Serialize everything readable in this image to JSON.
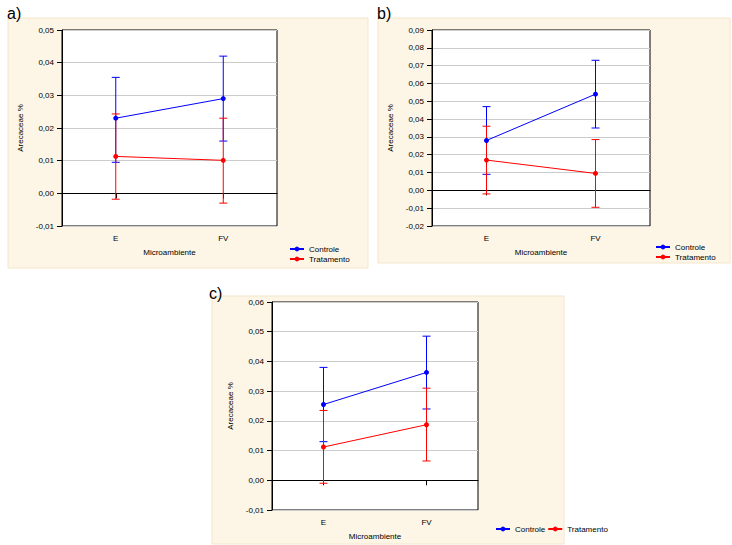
{
  "chart_data": [
    {
      "type": "line",
      "title": "a)",
      "x_label": "Microambiente",
      "y_label": "Arecaceae %",
      "categories": [
        "E",
        "FV"
      ],
      "series": [
        {
          "name": "Controle",
          "color": "#0000ff",
          "marker": "circle",
          "values": [
            0.023,
            0.029
          ],
          "error_low": [
            0.0095,
            0.016
          ],
          "error_high": [
            0.0355,
            0.042
          ]
        },
        {
          "name": "Tratamento",
          "color": "#ff0000",
          "marker": "circle",
          "values": [
            0.0113,
            0.0101
          ],
          "error_low": [
            -0.0018,
            -0.003
          ],
          "error_high": [
            0.0243,
            0.023
          ]
        }
      ],
      "ylim": [
        -0.01,
        0.05
      ],
      "yticks": [
        {
          "value": -0.01,
          "label": "-0,01"
        },
        {
          "value": 0,
          "label": "0,00"
        },
        {
          "value": 0.01,
          "label": "0,01"
        },
        {
          "value": 0.02,
          "label": "0,02"
        },
        {
          "value": 0.03,
          "label": "0,03"
        },
        {
          "value": 0.04,
          "label": "0,04"
        },
        {
          "value": 0.05,
          "label": "0,05"
        }
      ],
      "grid": true,
      "legend": "lower right"
    },
    {
      "type": "line",
      "title": "b)",
      "x_label": "Microambiente",
      "y_label": "Arecaceae %",
      "categories": [
        "E",
        "FV"
      ],
      "series": [
        {
          "name": "Controle",
          "color": "#0000ff",
          "marker": "circle",
          "values": [
            0.028,
            0.054
          ],
          "error_low": [
            0.009,
            0.035
          ],
          "error_high": [
            0.047,
            0.073
          ]
        },
        {
          "name": "Tratamento",
          "color": "#ff0000",
          "marker": "circle",
          "values": [
            0.017,
            0.0095
          ],
          "error_low": [
            -0.002,
            -0.0095
          ],
          "error_high": [
            0.036,
            0.0285
          ]
        }
      ],
      "ylim": [
        -0.02,
        0.09
      ],
      "yticks": [
        {
          "value": -0.02,
          "label": "-0,02"
        },
        {
          "value": -0.01,
          "label": "-0,01"
        },
        {
          "value": 0,
          "label": "0,00"
        },
        {
          "value": 0.01,
          "label": "0,01"
        },
        {
          "value": 0.02,
          "label": "0,02"
        },
        {
          "value": 0.03,
          "label": "0,03"
        },
        {
          "value": 0.04,
          "label": "0,04"
        },
        {
          "value": 0.05,
          "label": "0,05"
        },
        {
          "value": 0.06,
          "label": "0,06"
        },
        {
          "value": 0.07,
          "label": "0,07"
        },
        {
          "value": 0.08,
          "label": "0,08"
        },
        {
          "value": 0.09,
          "label": "0,09"
        }
      ],
      "grid": true,
      "legend": "lower right"
    },
    {
      "type": "line",
      "title": "c)",
      "x_label": "Microambiente",
      "y_label": "Arecaceae %",
      "categories": [
        "E",
        "FV"
      ],
      "series": [
        {
          "name": "Controle",
          "color": "#0000ff",
          "marker": "circle",
          "values": [
            0.0255,
            0.0363
          ],
          "error_low": [
            0.013,
            0.024
          ],
          "error_high": [
            0.038,
            0.0485
          ]
        },
        {
          "name": "Tratamento",
          "color": "#ff0000",
          "marker": "circle",
          "values": [
            0.0112,
            0.0187
          ],
          "error_low": [
            -0.001,
            0.0065
          ],
          "error_high": [
            0.0235,
            0.031
          ]
        }
      ],
      "ylim": [
        -0.01,
        0.06
      ],
      "yticks": [
        {
          "value": -0.01,
          "label": "-0,01"
        },
        {
          "value": 0,
          "label": "0,00"
        },
        {
          "value": 0.01,
          "label": "0,01"
        },
        {
          "value": 0.02,
          "label": "0,02"
        },
        {
          "value": 0.03,
          "label": "0,03"
        },
        {
          "value": 0.04,
          "label": "0,04"
        },
        {
          "value": 0.05,
          "label": "0,05"
        },
        {
          "value": 0.06,
          "label": "0,06"
        }
      ],
      "grid": true,
      "legend": "lower right"
    }
  ]
}
